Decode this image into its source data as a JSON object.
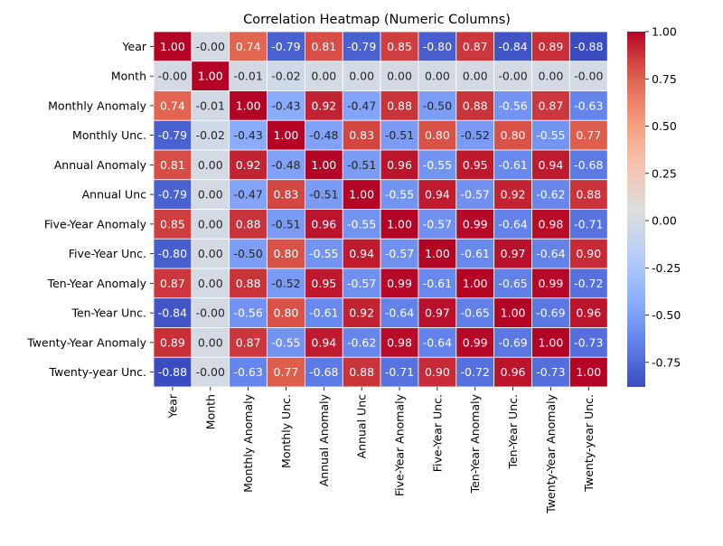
{
  "chart_data": {
    "type": "heatmap",
    "title": "Correlation Heatmap (Numeric Columns)",
    "xlabel": "",
    "ylabel": "",
    "colormap": "coolwarm",
    "value_format": "0.00",
    "vmin": -0.88,
    "vmax": 1.0,
    "row_labels": [
      "Year",
      "Month",
      "Monthly Anomaly",
      "Monthly Unc.",
      "Annual Anomaly",
      "Annual Unc",
      "Five-Year Anomaly",
      "Five-Year Unc.",
      "Ten-Year Anomaly",
      "Ten-Year Unc.",
      "Twenty-Year Anomaly",
      "Twenty-year Unc."
    ],
    "col_labels": [
      "Year",
      "Month",
      "Monthly Anomaly",
      "Monthly Unc.",
      "Annual Anomaly",
      "Annual Unc",
      "Five-Year Anomaly",
      "Five-Year Unc.",
      "Ten-Year Anomaly",
      "Ten-Year Unc.",
      "Twenty-Year Anomaly",
      "Twenty-year Unc."
    ],
    "values": [
      [
        "1.00",
        "-0.00",
        "0.74",
        "-0.79",
        "0.81",
        "-0.79",
        "0.85",
        "-0.80",
        "0.87",
        "-0.84",
        "0.89",
        "-0.88"
      ],
      [
        "-0.00",
        "1.00",
        "-0.01",
        "-0.02",
        "0.00",
        "0.00",
        "0.00",
        "0.00",
        "0.00",
        "-0.00",
        "0.00",
        "-0.00"
      ],
      [
        "0.74",
        "-0.01",
        "1.00",
        "-0.43",
        "0.92",
        "-0.47",
        "0.88",
        "-0.50",
        "0.88",
        "-0.56",
        "0.87",
        "-0.63"
      ],
      [
        "-0.79",
        "-0.02",
        "-0.43",
        "1.00",
        "-0.48",
        "0.83",
        "-0.51",
        "0.80",
        "-0.52",
        "0.80",
        "-0.55",
        "0.77"
      ],
      [
        "0.81",
        "0.00",
        "0.92",
        "-0.48",
        "1.00",
        "-0.51",
        "0.96",
        "-0.55",
        "0.95",
        "-0.61",
        "0.94",
        "-0.68"
      ],
      [
        "-0.79",
        "0.00",
        "-0.47",
        "0.83",
        "-0.51",
        "1.00",
        "-0.55",
        "0.94",
        "-0.57",
        "0.92",
        "-0.62",
        "0.88"
      ],
      [
        "0.85",
        "0.00",
        "0.88",
        "-0.51",
        "0.96",
        "-0.55",
        "1.00",
        "-0.57",
        "0.99",
        "-0.64",
        "0.98",
        "-0.71"
      ],
      [
        "-0.80",
        "0.00",
        "-0.50",
        "0.80",
        "-0.55",
        "0.94",
        "-0.57",
        "1.00",
        "-0.61",
        "0.97",
        "-0.64",
        "0.90"
      ],
      [
        "0.87",
        "0.00",
        "0.88",
        "-0.52",
        "0.95",
        "-0.57",
        "0.99",
        "-0.61",
        "1.00",
        "-0.65",
        "0.99",
        "-0.72"
      ],
      [
        "-0.84",
        "-0.00",
        "-0.56",
        "0.80",
        "-0.61",
        "0.92",
        "-0.64",
        "0.97",
        "-0.65",
        "1.00",
        "-0.69",
        "0.96"
      ],
      [
        "0.89",
        "0.00",
        "0.87",
        "-0.55",
        "0.94",
        "-0.62",
        "0.98",
        "-0.64",
        "0.99",
        "-0.69",
        "1.00",
        "-0.73"
      ],
      [
        "-0.88",
        "-0.00",
        "-0.63",
        "0.77",
        "-0.68",
        "0.88",
        "-0.71",
        "0.90",
        "-0.72",
        "0.96",
        "-0.73",
        "1.00"
      ]
    ],
    "colorbar": {
      "ticks": [
        "1.00",
        "0.75",
        "0.50",
        "0.25",
        "0.00",
        "-0.25",
        "-0.50",
        "-0.75"
      ]
    }
  }
}
